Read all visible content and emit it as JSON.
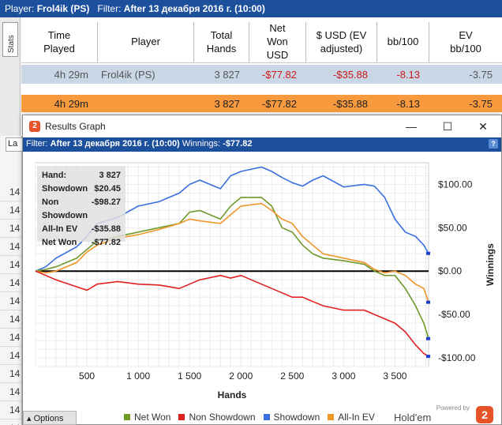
{
  "header": {
    "player_label": "Player:",
    "player_value": "Frol4ik (PS)",
    "filter_label": "Filter:",
    "filter_value": "After 13 декабря 2016 г. (10:00)"
  },
  "stats_tab": "Stats",
  "table": {
    "columns": [
      "Time\nPlayed",
      "Player",
      "Total\nHands",
      "Net\nWon\nUSD",
      "$ USD (EV\nadjusted)",
      "bb/100",
      "EV\nbb/100"
    ],
    "rows": [
      [
        "4h 29m",
        "Frol4ik (PS)",
        "3 827",
        "-$77.82",
        "-$35.88",
        "-8.13",
        "-3.75"
      ],
      [
        "4h 29m",
        "",
        "3 827",
        "-$77.82",
        "-$35.88",
        "-8.13",
        "-3.75"
      ]
    ]
  },
  "left_col": {
    "la": "La",
    "items": [
      "14",
      "14",
      "14",
      "14",
      "14",
      "14",
      "14",
      "14",
      "14",
      "14",
      "14",
      "14",
      "14",
      "14"
    ]
  },
  "window": {
    "title": "Results Graph",
    "app_icon": "2",
    "minimize": "—",
    "maximize": "☐",
    "close": "✕",
    "filter_label": "Filter:",
    "filter_value": "After 13 декабря 2016 г. (10:00)",
    "winnings_label": "Winnings:",
    "winnings_value": "-$77.82",
    "help": "?"
  },
  "stats_box": [
    {
      "label": "Hand:",
      "value": "3 827"
    },
    {
      "label": "Showdown",
      "value": "$20.45"
    },
    {
      "label": "Non Showdown",
      "value": "-$98.27"
    },
    {
      "label": "All-In EV",
      "value": "-$35.88"
    },
    {
      "label": "Net Won",
      "value": "-$77.82"
    }
  ],
  "legend": [
    {
      "name": "Net Won",
      "color": "#6f9a2a"
    },
    {
      "name": "Non Showdown",
      "color": "#e02020"
    },
    {
      "name": "Showdown",
      "color": "#3a6fe0"
    },
    {
      "name": "All-In EV",
      "color": "#f0962a"
    }
  ],
  "options_label": "Options",
  "brand": {
    "powered_by": "Powered by",
    "name": "Hold'em Manager",
    "logo": "2"
  },
  "chart_data": {
    "type": "line",
    "xlabel": "Hands",
    "ylabel": "Winnings",
    "xlim": [
      0,
      3827
    ],
    "ylim": [
      -110,
      125
    ],
    "x_ticks": [
      500,
      1000,
      1500,
      2000,
      2500,
      3000,
      3500
    ],
    "x_tick_labels": [
      "500",
      "1 000",
      "1 500",
      "2 000",
      "2 500",
      "3 000",
      "3 500"
    ],
    "y_ticks": [
      100,
      50,
      0,
      -50,
      -100
    ],
    "y_tick_labels": [
      "$100.00",
      "$50.00",
      "$0.00",
      "-$50.00",
      "-$100.00"
    ],
    "grid": true,
    "series": [
      {
        "name": "Showdown",
        "color": "#3a6fe0",
        "x": [
          0,
          100,
          200,
          400,
          500,
          600,
          800,
          1000,
          1200,
          1400,
          1500,
          1600,
          1800,
          1900,
          2000,
          2200,
          2300,
          2400,
          2500,
          2600,
          2700,
          2800,
          3000,
          3200,
          3300,
          3400,
          3500,
          3600,
          3700,
          3780,
          3827
        ],
        "y": [
          0,
          5,
          15,
          28,
          40,
          55,
          62,
          75,
          80,
          90,
          100,
          105,
          95,
          110,
          115,
          120,
          115,
          108,
          102,
          98,
          105,
          110,
          97,
          100,
          98,
          85,
          60,
          45,
          40,
          30,
          20.45
        ]
      },
      {
        "name": "Net Won",
        "color": "#6f9a2a",
        "x": [
          0,
          100,
          200,
          400,
          500,
          600,
          800,
          1000,
          1200,
          1400,
          1500,
          1600,
          1800,
          1900,
          2000,
          2200,
          2300,
          2400,
          2500,
          2600,
          2700,
          2800,
          3000,
          3200,
          3300,
          3400,
          3500,
          3600,
          3700,
          3780,
          3827
        ],
        "y": [
          0,
          2,
          5,
          15,
          25,
          35,
          40,
          45,
          50,
          55,
          68,
          70,
          60,
          75,
          85,
          85,
          75,
          50,
          45,
          30,
          20,
          15,
          12,
          8,
          0,
          -5,
          -5,
          -20,
          -40,
          -60,
          -77.82
        ]
      },
      {
        "name": "All-In EV",
        "color": "#f0962a",
        "x": [
          0,
          100,
          200,
          400,
          500,
          600,
          800,
          1000,
          1200,
          1400,
          1500,
          1600,
          1800,
          1900,
          2000,
          2200,
          2300,
          2400,
          2500,
          2600,
          2700,
          2800,
          3000,
          3200,
          3300,
          3400,
          3500,
          3600,
          3700,
          3780,
          3827
        ],
        "y": [
          0,
          -2,
          0,
          10,
          22,
          30,
          38,
          42,
          48,
          55,
          60,
          58,
          55,
          65,
          75,
          78,
          70,
          60,
          55,
          40,
          30,
          20,
          15,
          10,
          2,
          -2,
          0,
          -5,
          -15,
          -20,
          -35.88
        ]
      },
      {
        "name": "Non Showdown",
        "color": "#e02020",
        "x": [
          0,
          100,
          200,
          400,
          500,
          600,
          800,
          1000,
          1200,
          1400,
          1500,
          1600,
          1800,
          1900,
          2000,
          2200,
          2300,
          2400,
          2500,
          2600,
          2700,
          2800,
          3000,
          3200,
          3300,
          3400,
          3500,
          3600,
          3700,
          3780,
          3827
        ],
        "y": [
          0,
          -5,
          -10,
          -18,
          -22,
          -15,
          -12,
          -15,
          -16,
          -20,
          -15,
          -10,
          -5,
          -8,
          -5,
          -15,
          -20,
          -25,
          -30,
          -30,
          -35,
          -40,
          -45,
          -45,
          -50,
          -55,
          -60,
          -70,
          -85,
          -95,
          -98.27
        ]
      }
    ]
  }
}
